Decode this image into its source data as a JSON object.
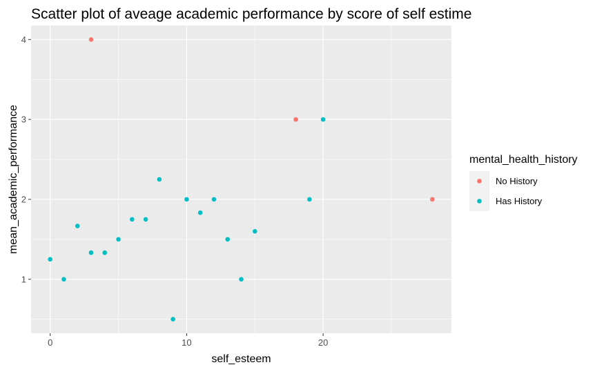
{
  "chart_data": {
    "type": "scatter",
    "title": "Scatter plot of aveage academic performance by score of self estime",
    "xlabel": "self_esteem",
    "ylabel": "mean_academic_performance",
    "xlim": [
      -1.4,
      29.4
    ],
    "ylim": [
      0.325,
      4.175
    ],
    "x_ticks": [
      0,
      10,
      20
    ],
    "x_minor_ticks": [
      5,
      15,
      25
    ],
    "y_ticks": [
      1,
      2,
      3,
      4
    ],
    "y_minor_ticks": [
      0.5,
      1.5,
      2.5,
      3.5
    ],
    "grid": true,
    "background": "#EBEBEB",
    "gridline_color": "#FFFFFF",
    "legend": {
      "title": "mental_health_history",
      "placement": "right"
    },
    "series": [
      {
        "name": "No History",
        "color": "#F8766D",
        "points": [
          {
            "x": 3,
            "y": 4.0
          },
          {
            "x": 18,
            "y": 3.0
          },
          {
            "x": 28,
            "y": 2.0
          }
        ]
      },
      {
        "name": "Has History",
        "color": "#00BFC4",
        "points": [
          {
            "x": 0,
            "y": 1.25
          },
          {
            "x": 1,
            "y": 1.0
          },
          {
            "x": 2,
            "y": 1.667
          },
          {
            "x": 3,
            "y": 1.333
          },
          {
            "x": 4,
            "y": 1.333
          },
          {
            "x": 5,
            "y": 1.5
          },
          {
            "x": 6,
            "y": 1.75
          },
          {
            "x": 7,
            "y": 1.75
          },
          {
            "x": 8,
            "y": 2.25
          },
          {
            "x": 9,
            "y": 0.5
          },
          {
            "x": 10,
            "y": 2.0
          },
          {
            "x": 11,
            "y": 1.833
          },
          {
            "x": 12,
            "y": 2.0
          },
          {
            "x": 13,
            "y": 1.5
          },
          {
            "x": 14,
            "y": 1.0
          },
          {
            "x": 15,
            "y": 1.6
          },
          {
            "x": 19,
            "y": 2.0
          },
          {
            "x": 20,
            "y": 3.0
          }
        ]
      }
    ]
  }
}
